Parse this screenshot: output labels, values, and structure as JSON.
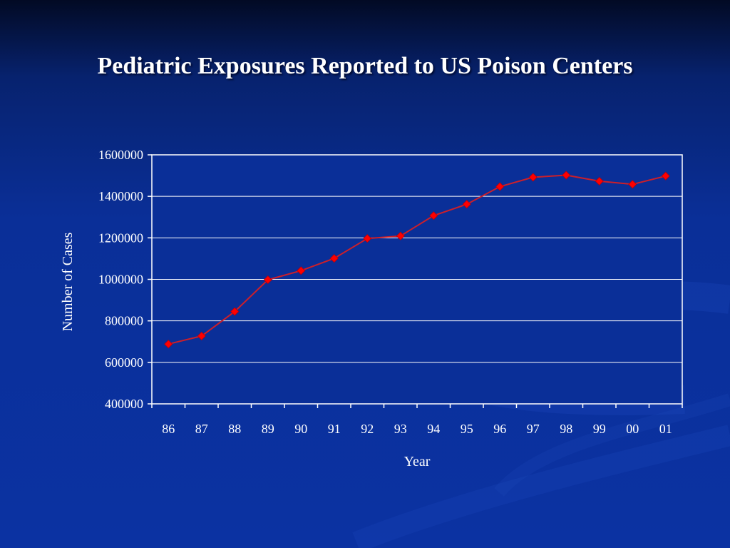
{
  "slide": {
    "title": "Pediatric Exposures Reported to US Poison Centers"
  },
  "chart_data": {
    "type": "line",
    "title": "Pediatric Exposures Reported to US Poison Centers",
    "xlabel": "Year",
    "ylabel": "Number of Cases",
    "categories": [
      "86",
      "87",
      "88",
      "89",
      "90",
      "91",
      "92",
      "93",
      "94",
      "95",
      "96",
      "97",
      "98",
      "99",
      "00",
      "01"
    ],
    "series": [
      {
        "values": [
          688000,
          727000,
          845000,
          998000,
          1042000,
          1101000,
          1197000,
          1209000,
          1307000,
          1362000,
          1447000,
          1492000,
          1502000,
          1473000,
          1458000,
          1498000
        ]
      }
    ],
    "yticks": [
      "400000",
      "600000",
      "800000",
      "1000000",
      "1200000",
      "1400000",
      "1600000"
    ],
    "ylim": [
      400000,
      1600000
    ],
    "grid": true,
    "legend": "none",
    "colors": {
      "line": "#cc1f2a",
      "marker": "#ff0000",
      "plot_background": "#0a2f98",
      "axes": "#ffffff"
    }
  }
}
